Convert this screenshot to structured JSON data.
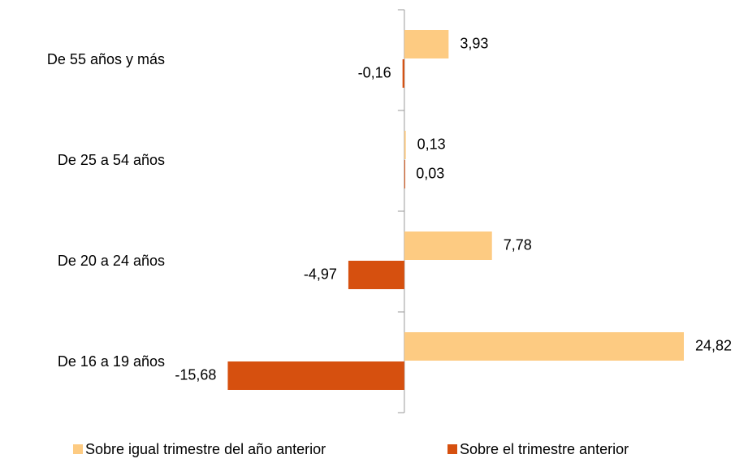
{
  "chart_data": {
    "type": "hbar",
    "categories": [
      "De 55 años y más",
      "De 25 a 54 años",
      "De 20 a 24 años",
      "De 16 a 19 años"
    ],
    "series": [
      {
        "name": "Sobre igual trimestre del año anterior",
        "color": "#fdcb82",
        "values": [
          3.93,
          0.13,
          7.78,
          24.82
        ],
        "value_labels": [
          "3,93",
          "0,13",
          "7,78",
          "24,82"
        ]
      },
      {
        "name": "Sobre el trimestre anterior",
        "color": "#d6500f",
        "values": [
          -0.16,
          0.03,
          -4.97,
          -15.68
        ],
        "value_labels": [
          "-0,16",
          "0,03",
          "-4,97",
          "-15,68"
        ]
      }
    ],
    "xlim": [
      -16,
      25
    ],
    "legend": "bottom"
  }
}
